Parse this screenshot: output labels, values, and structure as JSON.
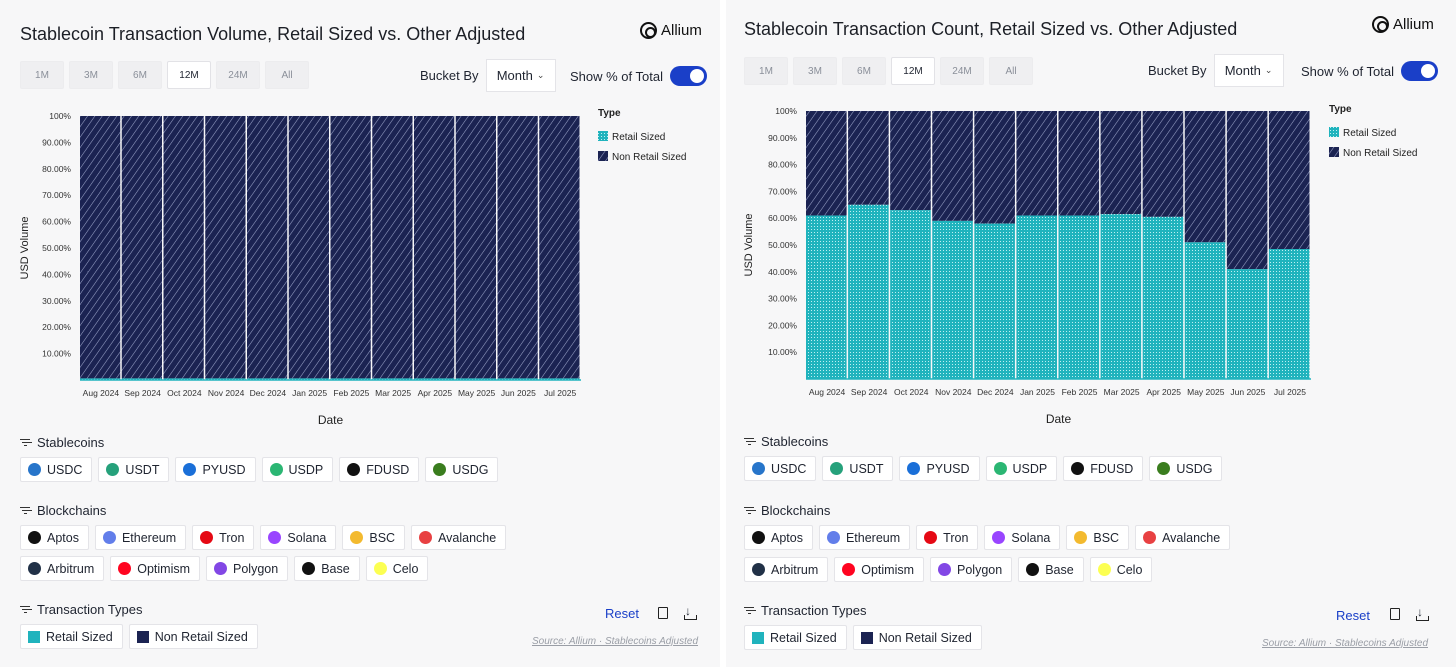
{
  "colors": {
    "retail": "#20b3bd",
    "non_retail": "#1b2352",
    "accent": "#1a3fc8"
  },
  "panels": [
    {
      "title": "Stablecoin Transaction Volume, Retail Sized vs. Other Adjusted",
      "logo_text": "Allium",
      "ranges": [
        "1M",
        "3M",
        "6M",
        "12M",
        "24M",
        "All"
      ],
      "active_range": "12M",
      "bucket_label": "Bucket By",
      "bucket_value": "Month",
      "pct_label": "Show % of Total",
      "sections": {
        "stablecoins": "Stablecoins",
        "blockchains": "Blockchains",
        "tx_types": "Transaction Types"
      },
      "reset_label": "Reset",
      "source": "Source: Allium · Stablecoins Adjusted"
    },
    {
      "title": "Stablecoin Transaction Count, Retail Sized vs. Other Adjusted",
      "logo_text": "Allium",
      "ranges": [
        "1M",
        "3M",
        "6M",
        "12M",
        "24M",
        "All"
      ],
      "active_range": "12M",
      "bucket_label": "Bucket By",
      "bucket_value": "Month",
      "pct_label": "Show % of Total",
      "sections": {
        "stablecoins": "Stablecoins",
        "blockchains": "Blockchains",
        "tx_types": "Transaction Types"
      },
      "reset_label": "Reset",
      "source": "Source: Allium · Stablecoins Adjusted"
    }
  ],
  "stablecoins": [
    {
      "label": "USDC",
      "icon": "usdc-icon",
      "color": "#2775ca"
    },
    {
      "label": "USDT",
      "icon": "usdt-icon",
      "color": "#26a17b"
    },
    {
      "label": "PYUSD",
      "icon": "pyusd-icon",
      "color": "#1a6fd8"
    },
    {
      "label": "USDP",
      "icon": "usdp-icon",
      "color": "#2bb673"
    },
    {
      "label": "FDUSD",
      "icon": "fdusd-icon",
      "color": "#111111"
    },
    {
      "label": "USDG",
      "icon": "usdg-icon",
      "color": "#3a7d1e"
    }
  ],
  "blockchains_row1": [
    {
      "label": "Aptos",
      "icon": "aptos-icon",
      "color": "#111111"
    },
    {
      "label": "Ethereum",
      "icon": "ethereum-icon",
      "color": "#627eea"
    },
    {
      "label": "Tron",
      "icon": "tron-icon",
      "color": "#e50914"
    },
    {
      "label": "Solana",
      "icon": "solana-icon",
      "color": "#9945ff"
    },
    {
      "label": "BSC",
      "icon": "bsc-icon",
      "color": "#f3ba2f"
    },
    {
      "label": "Avalanche",
      "icon": "avalanche-icon",
      "color": "#e84142"
    }
  ],
  "blockchains_row2": [
    {
      "label": "Arbitrum",
      "icon": "arbitrum-icon",
      "color": "#213147"
    },
    {
      "label": "Optimism",
      "icon": "optimism-icon",
      "color": "#ff0420"
    },
    {
      "label": "Polygon",
      "icon": "polygon-icon",
      "color": "#8247e5"
    },
    {
      "label": "Base",
      "icon": "base-icon",
      "color": "#111111"
    },
    {
      "label": "Celo",
      "icon": "celo-icon",
      "color": "#fcff52"
    }
  ],
  "tx_types": [
    {
      "label": "Retail Sized",
      "color": "#20b3bd"
    },
    {
      "label": "Non Retail Sized",
      "color": "#1b2352"
    }
  ],
  "chart_data": [
    {
      "type": "bar",
      "stacked": true,
      "title": "Stablecoin Transaction Volume, Retail Sized vs. Other Adjusted",
      "xlabel": "Date",
      "ylabel": "USD Volume",
      "ylim": [
        0,
        100
      ],
      "yticks": [
        "100%",
        "90.00%",
        "80.00%",
        "70.00%",
        "60.00%",
        "50.00%",
        "40.00%",
        "30.00%",
        "20.00%",
        "10.00%"
      ],
      "categories": [
        "Aug 2024",
        "Sep 2024",
        "Oct 2024",
        "Nov 2024",
        "Dec 2024",
        "Jan 2025",
        "Feb 2025",
        "Mar 2025",
        "Apr 2025",
        "May 2025",
        "Jun 2025",
        "Jul 2025"
      ],
      "legend_title": "Type",
      "series": [
        {
          "name": "Retail Sized",
          "values": [
            0.6,
            0.6,
            0.6,
            0.6,
            0.6,
            0.6,
            0.6,
            0.6,
            0.6,
            0.6,
            0.6,
            0.6
          ]
        },
        {
          "name": "Non Retail Sized",
          "values": [
            99.4,
            99.4,
            99.4,
            99.4,
            99.4,
            99.4,
            99.4,
            99.4,
            99.4,
            99.4,
            99.4,
            99.4
          ]
        }
      ]
    },
    {
      "type": "bar",
      "stacked": true,
      "title": "Stablecoin Transaction Count, Retail Sized vs. Other Adjusted",
      "xlabel": "Date",
      "ylabel": "USD Volume",
      "ylim": [
        0,
        100
      ],
      "yticks": [
        "100%",
        "90.00%",
        "80.00%",
        "70.00%",
        "60.00%",
        "50.00%",
        "40.00%",
        "30.00%",
        "20.00%",
        "10.00%"
      ],
      "categories": [
        "Aug 2024",
        "Sep 2024",
        "Oct 2024",
        "Nov 2024",
        "Dec 2024",
        "Jan 2025",
        "Feb 2025",
        "Mar 2025",
        "Apr 2025",
        "May 2025",
        "Jun 2025",
        "Jul 2025"
      ],
      "legend_title": "Type",
      "series": [
        {
          "name": "Retail Sized",
          "values": [
            61,
            65,
            63,
            59,
            58,
            61,
            61,
            61.5,
            60.5,
            51,
            41,
            48.5
          ]
        },
        {
          "name": "Non Retail Sized",
          "values": [
            39,
            35,
            37,
            41,
            42,
            39,
            39,
            38.5,
            39.5,
            49,
            59,
            51.5
          ]
        }
      ]
    }
  ]
}
